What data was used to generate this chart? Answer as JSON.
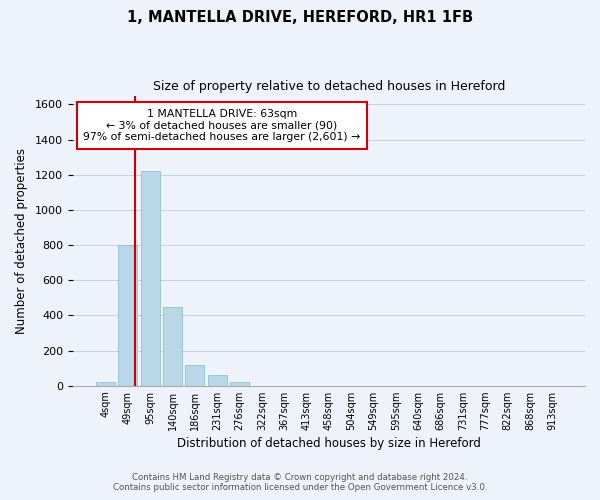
{
  "title_line1": "1, MANTELLA DRIVE, HEREFORD, HR1 1FB",
  "title_line2": "Size of property relative to detached houses in Hereford",
  "xlabel": "Distribution of detached houses by size in Hereford",
  "ylabel": "Number of detached properties",
  "bar_labels": [
    "4sqm",
    "49sqm",
    "95sqm",
    "140sqm",
    "186sqm",
    "231sqm",
    "276sqm",
    "322sqm",
    "367sqm",
    "413sqm",
    "458sqm",
    "504sqm",
    "549sqm",
    "595sqm",
    "640sqm",
    "686sqm",
    "731sqm",
    "777sqm",
    "822sqm",
    "868sqm",
    "913sqm"
  ],
  "bar_values": [
    20,
    800,
    1220,
    450,
    120,
    60,
    20,
    0,
    0,
    0,
    0,
    0,
    0,
    0,
    0,
    0,
    0,
    0,
    0,
    0,
    0
  ],
  "bar_color": "#b8d8e8",
  "bar_edge_color": "#8ab8cc",
  "vline_color": "#cc0000",
  "annotation_text_line1": "1 MANTELLA DRIVE: 63sqm",
  "annotation_text_line2": "← 3% of detached houses are smaller (90)",
  "annotation_text_line3": "97% of semi-detached houses are larger (2,601) →",
  "annotation_box_facecolor": "#ffffff",
  "annotation_box_edgecolor": "#cc0000",
  "ylim": [
    0,
    1650
  ],
  "yticks": [
    0,
    200,
    400,
    600,
    800,
    1000,
    1200,
    1400,
    1600
  ],
  "footer_line1": "Contains HM Land Registry data © Crown copyright and database right 2024.",
  "footer_line2": "Contains public sector information licensed under the Open Government Licence v3.0.",
  "background_color": "#eef2fb",
  "grid_color": "#c8d0e0"
}
